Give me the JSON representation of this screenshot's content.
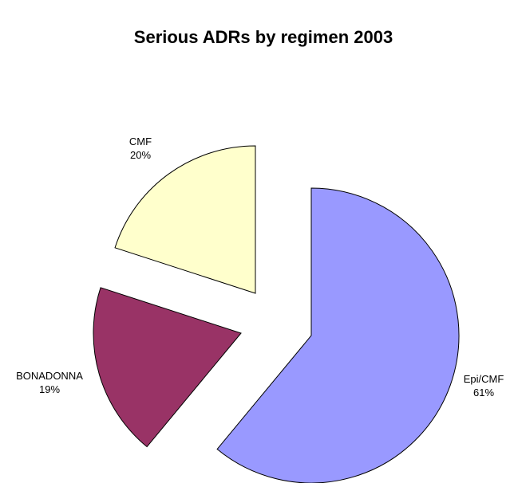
{
  "chart_data": {
    "type": "pie",
    "title": "Serious ADRs by regimen 2003",
    "categories": [
      "Epi/CMF",
      "BONADONNA",
      "CMF"
    ],
    "values": [
      61,
      19,
      20
    ],
    "value_labels": [
      "61%",
      "19%",
      "20%"
    ],
    "colors": [
      "#9999ff",
      "#993366",
      "#ffffcc"
    ]
  }
}
